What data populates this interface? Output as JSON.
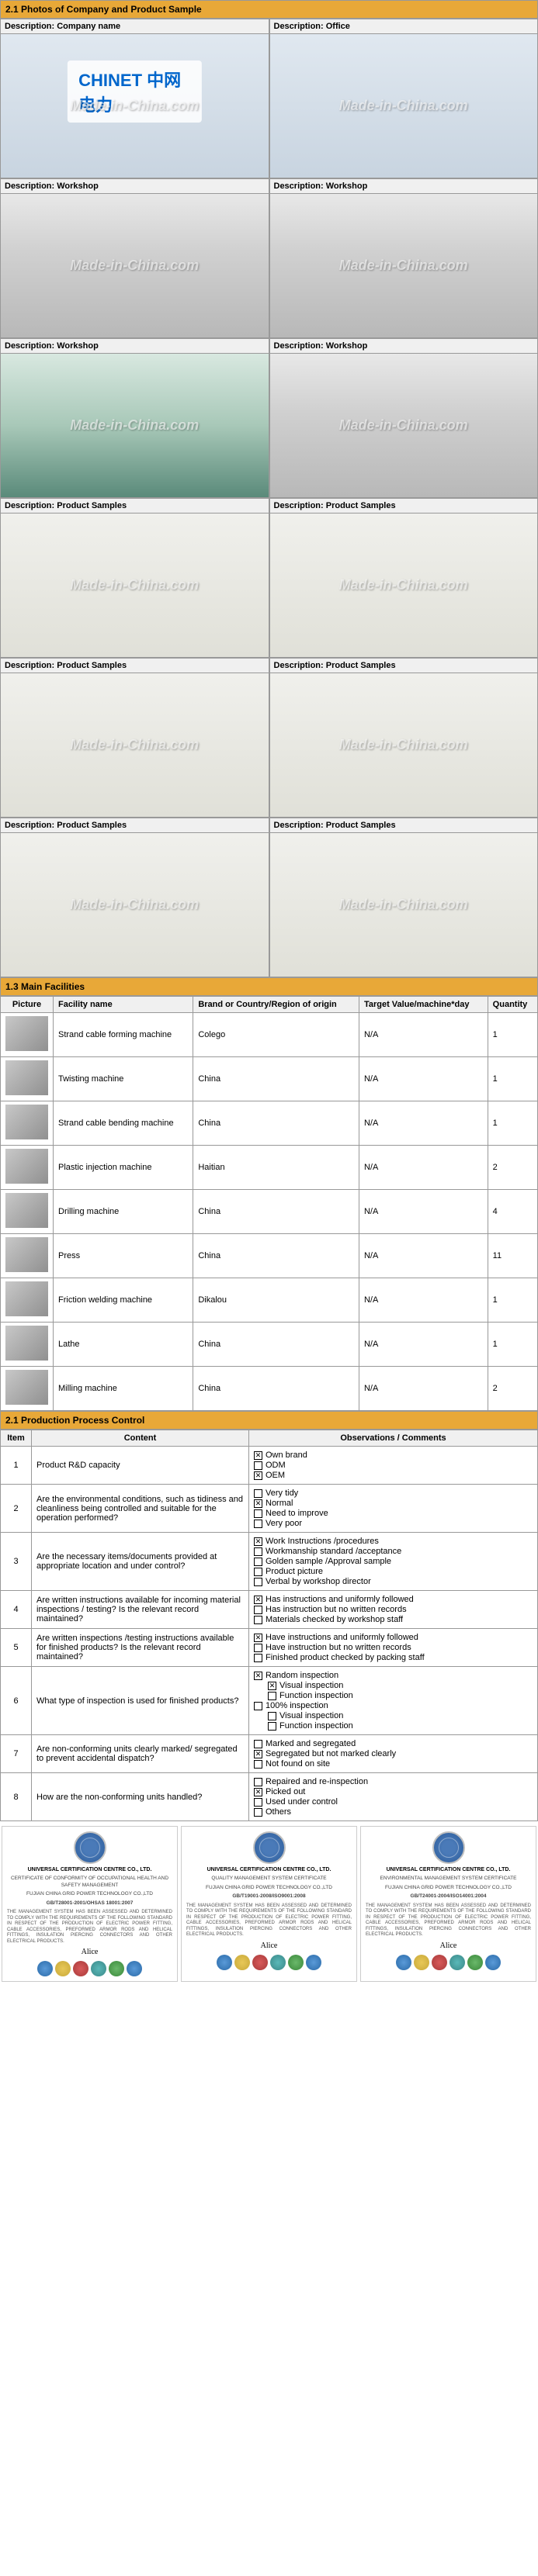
{
  "sections": {
    "photos_header": "2.1  Photos of Company and Product Sample",
    "facilities_header": "1.3 Main Facilities",
    "process_header": "2.1 Production Process Control"
  },
  "photos": [
    {
      "label": "Description: Company name",
      "class": "office",
      "logo": "CHINET 中网电力"
    },
    {
      "label": "Description: Office",
      "class": "office"
    },
    {
      "label": "Description: Workshop",
      "class": "workshop"
    },
    {
      "label": "Description: Workshop",
      "class": "workshop"
    },
    {
      "label": "Description: Workshop",
      "class": "workshop-teal"
    },
    {
      "label": "Description: Workshop",
      "class": "workshop"
    },
    {
      "label": "Description: Product Samples",
      "class": "product-sample"
    },
    {
      "label": "Description: Product Samples",
      "class": "product-sample"
    },
    {
      "label": "Description: Product Samples",
      "class": "product-sample"
    },
    {
      "label": "Description: Product Samples",
      "class": "product-sample"
    },
    {
      "label": "Description: Product Samples",
      "class": "product-sample"
    },
    {
      "label": "Description: Product Samples",
      "class": "product-sample"
    }
  ],
  "facilities": {
    "headers": [
      "Picture",
      "Facility name",
      "Brand or Country/Region of origin",
      "Target Value/machine*day",
      "Quantity"
    ],
    "rows": [
      {
        "name": "Strand cable forming machine",
        "brand": "Colego",
        "target": "N/A",
        "qty": "1"
      },
      {
        "name": "Twisting machine",
        "brand": "China",
        "target": "N/A",
        "qty": "1"
      },
      {
        "name": "Strand cable bending machine",
        "brand": "China",
        "target": "N/A",
        "qty": "1"
      },
      {
        "name": "Plastic injection machine",
        "brand": "Haitian",
        "target": "N/A",
        "qty": "2"
      },
      {
        "name": "Drilling machine",
        "brand": "China",
        "target": "N/A",
        "qty": "4"
      },
      {
        "name": "Press",
        "brand": "China",
        "target": "N/A",
        "qty": "11"
      },
      {
        "name": "Friction welding machine",
        "brand": "Dikalou",
        "target": "N/A",
        "qty": "1"
      },
      {
        "name": "Lathe",
        "brand": "China",
        "target": "N/A",
        "qty": "1"
      },
      {
        "name": "Milling machine",
        "brand": "China",
        "target": "N/A",
        "qty": "2"
      }
    ]
  },
  "process": {
    "headers": [
      "Item",
      "Content",
      "Observations / Comments"
    ],
    "rows": [
      {
        "item": "1",
        "content": "Product R&D capacity",
        "obs": [
          {
            "c": true,
            "t": "Own brand"
          },
          {
            "c": false,
            "t": "ODM"
          },
          {
            "c": true,
            "t": "OEM"
          }
        ]
      },
      {
        "item": "2",
        "content": "Are the environmental conditions, such as tidiness and cleanliness being controlled and suitable for the operation performed?",
        "obs": [
          {
            "c": false,
            "t": "Very tidy"
          },
          {
            "c": true,
            "t": "Normal"
          },
          {
            "c": false,
            "t": "Need to improve"
          },
          {
            "c": false,
            "t": "Very poor"
          }
        ]
      },
      {
        "item": "3",
        "content": "Are the necessary items/documents provided at appropriate location and under control?",
        "obs": [
          {
            "c": true,
            "t": "Work Instructions /procedures"
          },
          {
            "c": false,
            "t": "Workmanship standard /acceptance"
          },
          {
            "c": false,
            "t": "Golden sample /Approval sample"
          },
          {
            "c": false,
            "t": "Product picture"
          },
          {
            "c": false,
            "t": "Verbal by workshop director"
          }
        ]
      },
      {
        "item": "4",
        "content": "Are written instructions available for incoming material inspections / testing? Is the relevant record maintained?",
        "obs": [
          {
            "c": true,
            "t": "Has instructions and uniformly followed"
          },
          {
            "c": false,
            "t": "Has instruction but no written records"
          },
          {
            "c": false,
            "t": "Materials checked by workshop staff"
          }
        ]
      },
      {
        "item": "5",
        "content": "Are written inspections /testing instructions available for finished products? Is the relevant record maintained?",
        "obs": [
          {
            "c": true,
            "t": "Have instructions and uniformly followed"
          },
          {
            "c": false,
            "t": "Have instruction but no written records"
          },
          {
            "c": false,
            "t": "Finished product checked by packing staff"
          }
        ]
      },
      {
        "item": "6",
        "content": "What type of inspection is used for finished products?",
        "obs": [
          {
            "c": true,
            "t": "Random inspection"
          },
          {
            "c": true,
            "t": "Visual inspection",
            "indent": true
          },
          {
            "c": false,
            "t": "Function inspection",
            "indent": true
          },
          {
            "c": false,
            "t": "100% inspection"
          },
          {
            "c": false,
            "t": "Visual inspection",
            "indent": true
          },
          {
            "c": false,
            "t": "Function inspection",
            "indent": true
          }
        ]
      },
      {
        "item": "7",
        "content": "Are non-conforming units clearly marked/ segregated to prevent accidental dispatch?",
        "obs": [
          {
            "c": false,
            "t": "Marked and segregated"
          },
          {
            "c": true,
            "t": "Segregated but not marked clearly"
          },
          {
            "c": false,
            "t": "Not found on site"
          }
        ]
      },
      {
        "item": "8",
        "content": "How are the non-conforming units handled?",
        "obs": [
          {
            "c": false,
            "t": "Repaired and re-inspection"
          },
          {
            "c": true,
            "t": "Picked out"
          },
          {
            "c": false,
            "t": "Used under control"
          },
          {
            "c": false,
            "t": "Others"
          }
        ]
      }
    ]
  },
  "certs": [
    {
      "title": "UNIVERSAL CERTIFICATION CENTRE CO., LTD.",
      "sub": "CERTIFICATE OF CONFORMITY OF OCCUPATIONAL HEALTH AND SAFETY MANAGEMENT",
      "org": "FUJIAN CHINA GRID POWER TECHNOLOGY CO.,LTD",
      "std": "GB/T28001-2001/OHSAS 18001:2007"
    },
    {
      "title": "UNIVERSAL CERTIFICATION CENTRE CO., LTD.",
      "sub": "QUALITY MANAGEMENT SYSTEM CERTIFICATE",
      "org": "FUJIAN CHINA GRID POWER TECHNOLOGY CO.,LTD",
      "std": "GB/T19001-2008/ISO9001:2008"
    },
    {
      "title": "UNIVERSAL CERTIFICATION CENTRE CO., LTD.",
      "sub": "ENVIRONMENTAL MANAGEMENT SYSTEM CERTIFICATE",
      "org": "FUJIAN CHINA GRID POWER TECHNOLOGY CO.,LTD",
      "std": "GB/T24001-2004/ISO14001:2004"
    }
  ],
  "cert_body": "THE MANAGEMENT SYSTEM HAS BEEN ASSESSED AND DETERMINED TO COMPLY WITH THE REQUIREMENTS OF THE FOLLOWING STANDARD IN RESPECT OF THE PRODUCTION OF ELECTRIC POWER FITTING, CABLE ACCESSORIES, PREFORMED ARMOR RODS AND HELICAL FITTINGS, INSULATION PIERCING CONNECTORS AND OTHER ELECTRICAL PRODUCTS.",
  "sig": "Alice"
}
